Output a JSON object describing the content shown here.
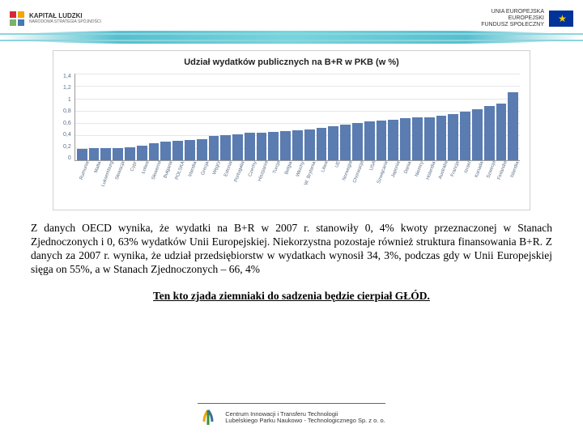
{
  "header": {
    "left_logo_title": "KAPITAŁ LUDZKI",
    "left_logo_sub": "NARODOWA STRATEGIA SPÓJNOŚCI",
    "left_colors": [
      "#d7283a",
      "#f0a800",
      "#7bb26b",
      "#4a78b0"
    ],
    "right_text_line1": "UNIA EUROPEJSKA",
    "right_text_line2": "EUROPEJSKI",
    "right_text_line3": "FUNDUSZ SPOŁECZNY"
  },
  "chart": {
    "type": "bar",
    "title": "Udział wydatków publicznych na B+R w PKB (w %)",
    "title_fontsize": 11,
    "ylim": [
      0,
      1.4
    ],
    "yticks": [
      "1,4",
      "1,2",
      "1",
      "0,8",
      "0,6",
      "0,4",
      "0,2",
      "0"
    ],
    "ytick_step": 0.2,
    "bar_color": "#5a7cb0",
    "grid_color": "#e6e6e6",
    "axis_color": "#999999",
    "tick_font_color": "#5a6f89",
    "background_color": "#ffffff",
    "categories": [
      "Rumunia",
      "Malta",
      "Luksemburg",
      "Słowacja",
      "Cypr",
      "Łotwa",
      "Słowenia",
      "Bułgaria",
      "POLSKA",
      "Irlandia",
      "Grecja",
      "Węgry",
      "Estonia",
      "Portugalia",
      "Czechy",
      "Hiszpania",
      "Turcja",
      "Belgia",
      "Włochy",
      "W. Brytania",
      "Litwa",
      "UE",
      "Norwegia",
      "Chorwacja",
      "USA",
      "Szwajcaria",
      "Japonia",
      "Dania",
      "Niemcy",
      "Holandia",
      "Australia",
      "Francja",
      "Izrael",
      "Kanada",
      "Szwecja",
      "Finlandia",
      "Islandia"
    ],
    "values": [
      0.18,
      0.19,
      0.19,
      0.2,
      0.21,
      0.24,
      0.28,
      0.3,
      0.32,
      0.33,
      0.34,
      0.39,
      0.4,
      0.42,
      0.44,
      0.45,
      0.46,
      0.47,
      0.48,
      0.5,
      0.52,
      0.55,
      0.58,
      0.6,
      0.63,
      0.64,
      0.66,
      0.68,
      0.7,
      0.7,
      0.72,
      0.74,
      0.78,
      0.82,
      0.88,
      0.92,
      1.1
    ]
  },
  "paragraph": "Z danych OECD wynika, że wydatki na B+R w 2007 r. stanowiły 0, 4% kwoty przeznaczonej w Stanach Zjednoczonych i 0, 63% wydatków Unii Europejskiej. Niekorzystna pozostaje również struktura finansowania B+R. Z danych za 2007 r. wynika, że udział przedsiębiorstw w wydatkach wynosił 34, 3%, podczas gdy w Unii Europejskiej sięga on 55%, a w Stanach Zjednoczonych – 66, 4%",
  "quote": "Ten kto zjada ziemniaki do sadzenia będzie cierpiał GŁÓD.",
  "footer": {
    "line1": "Centrum Innowacji i Transferu Technologii",
    "line2": "Lubelskiego Parku Naukowo - Technologicznego Sp. z o. o.",
    "icon_colors": [
      "#f0a800",
      "#3a8f3a",
      "#3a6f9f"
    ]
  }
}
